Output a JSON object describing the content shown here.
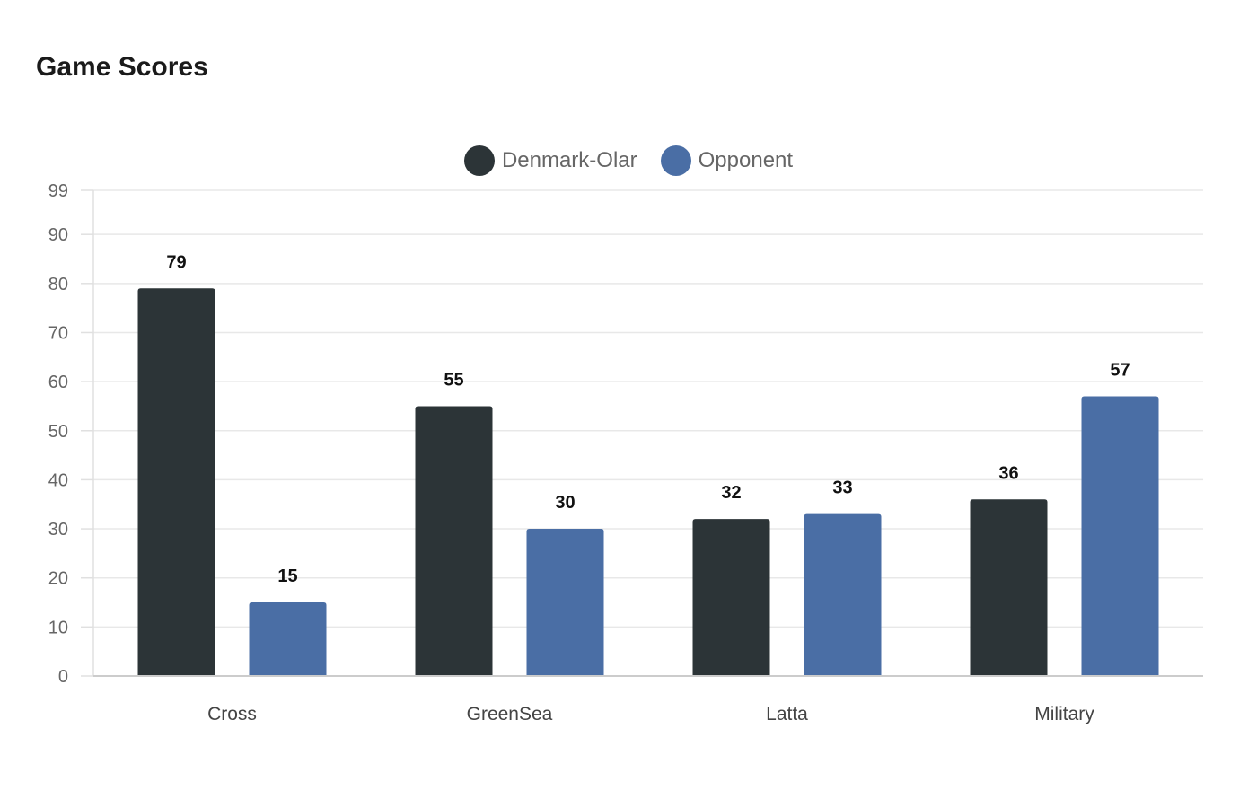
{
  "chart_data": {
    "type": "bar",
    "title": "Game Scores",
    "categories": [
      "Cross",
      "GreenSea",
      "Latta",
      "Military"
    ],
    "series": [
      {
        "name": "Denmark-Olar",
        "color": "#2c3437",
        "values": [
          79,
          55,
          32,
          36
        ]
      },
      {
        "name": "Opponent",
        "color": "#4a6ea5",
        "values": [
          15,
          30,
          33,
          57
        ]
      }
    ],
    "yticks": [
      0,
      10,
      20,
      30,
      40,
      50,
      60,
      70,
      80,
      90,
      99
    ],
    "ylim": [
      0,
      99
    ],
    "xlabel": "",
    "ylabel": "",
    "grid": true,
    "legend_position": "top-center"
  }
}
